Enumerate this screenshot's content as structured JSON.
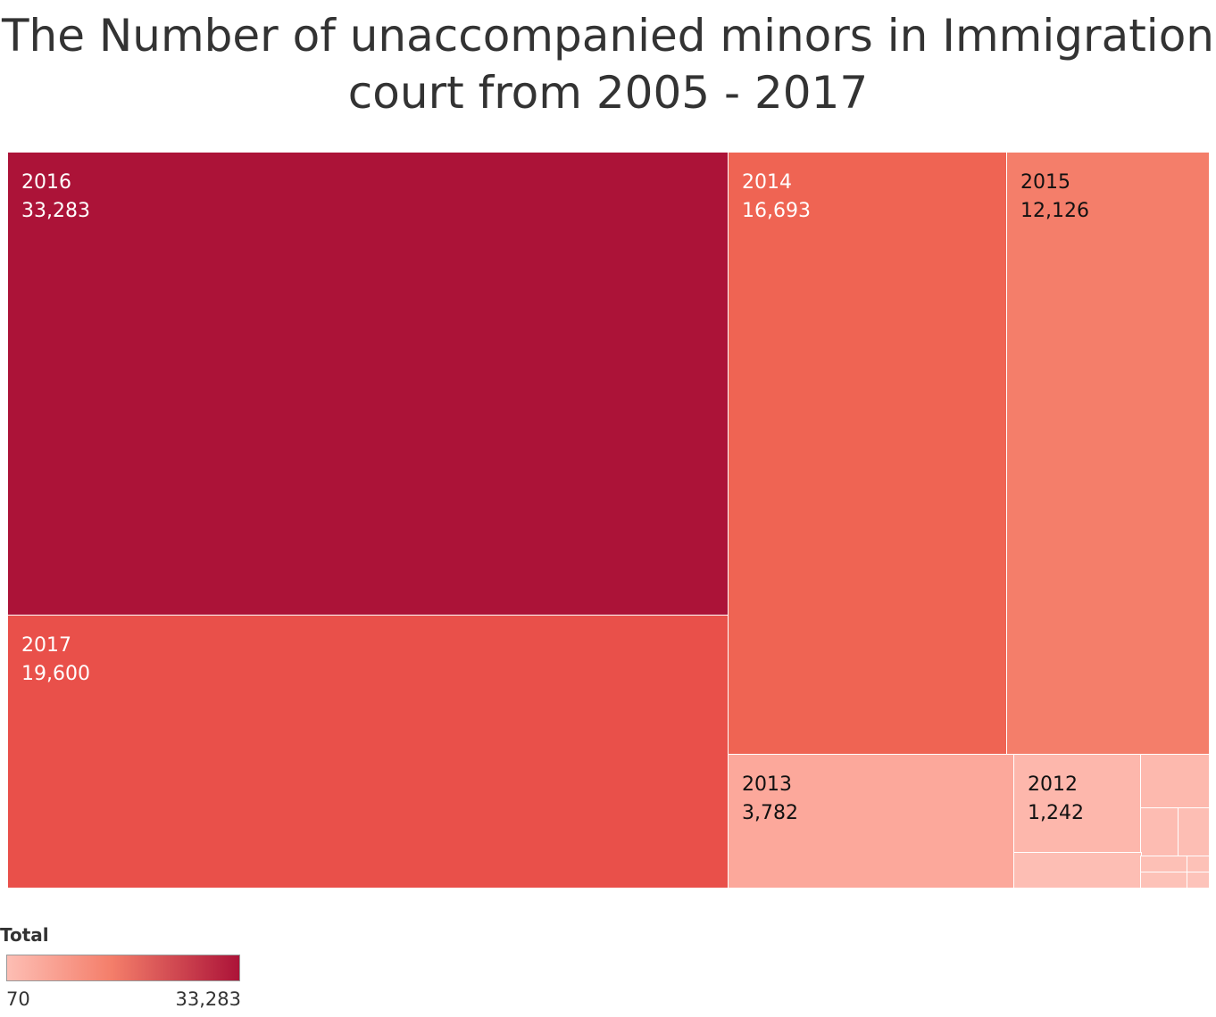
{
  "chart_data": {
    "type": "treemap",
    "title_line1": "The Number of unaccompanied minors in Immigration",
    "title_line2": "court from 2005 - 2017",
    "items": [
      {
        "year": "2016",
        "value_label": "33,283",
        "value": 33283,
        "color": "#ac1338",
        "text_color": "#ffffff",
        "labeled": true
      },
      {
        "year": "2017",
        "value_label": "19,600",
        "value": 19600,
        "color": "#e9504a",
        "text_color": "#ffffff",
        "labeled": true
      },
      {
        "year": "2014",
        "value_label": "16,693",
        "value": 16693,
        "color": "#ef6453",
        "text_color": "#ffffff",
        "labeled": true
      },
      {
        "year": "2015",
        "value_label": "12,126",
        "value": 12126,
        "color": "#f47e6a",
        "text_color": "#111111",
        "labeled": true
      },
      {
        "year": "2013",
        "value_label": "3,782",
        "value": 3782,
        "color": "#fca89b",
        "text_color": "#111111",
        "labeled": true
      },
      {
        "year": "2012",
        "value_label": "1,242",
        "value": 1242,
        "color": "#fdb7ac",
        "text_color": "#111111",
        "labeled": true
      },
      {
        "color": "#fdb9ae",
        "labeled": false
      },
      {
        "color": "#fdbcb2",
        "labeled": false
      },
      {
        "color": "#fdbeb4",
        "labeled": false
      },
      {
        "color": "#fdbeb4",
        "labeled": false
      },
      {
        "color": "#fdc0b6",
        "labeled": false
      },
      {
        "color": "#fdc1b7",
        "labeled": false
      },
      {
        "color": "#fdc2b8",
        "labeled": false
      },
      {
        "color": "#fdc3ba",
        "labeled": false
      }
    ],
    "legend": {
      "title": "Total",
      "min_label": "70",
      "max_label": "33,283",
      "color_low": "#fdbeb4",
      "color_mid": "#f47e6a",
      "color_high": "#ac1338"
    }
  }
}
